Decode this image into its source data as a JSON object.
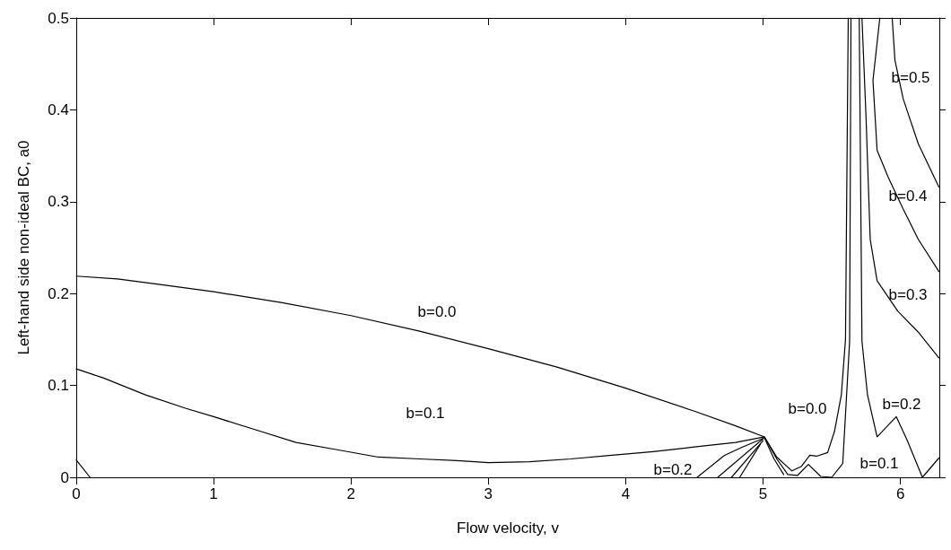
{
  "chart_data": {
    "type": "line",
    "xlabel": "Flow velocity, v",
    "ylabel": "Left-hand side non-ideal BC, a0",
    "xlim": [
      0,
      6.2832
    ],
    "xticks": [
      0,
      1,
      2,
      3,
      4,
      5,
      6
    ],
    "ylim": [
      0,
      0.5
    ],
    "yticks": [
      0,
      0.1,
      0.2,
      0.3,
      0.4,
      0.5
    ],
    "grid": false,
    "marker": "none",
    "line_style": "solid",
    "series": [
      {
        "color": "#000000",
        "x": [
          0,
          0.3,
          0.6,
          1,
          1.5,
          2,
          2.5,
          3,
          3.5,
          4,
          4.5,
          4.8,
          5.01,
          5.1,
          5.21,
          5.28,
          5.34,
          5.39,
          5.47,
          5.52,
          5.57,
          5.6,
          5.62
        ],
        "values": [
          0.219,
          0.216,
          0.21,
          0.202,
          0.19,
          0.176,
          0.159,
          0.14,
          0.12,
          0.097,
          0.072,
          0.056,
          0.044,
          0.022,
          0.007,
          0.012,
          0.024,
          0.023,
          0.027,
          0.05,
          0.09,
          0.15,
          0.5
        ]
      },
      {
        "color": "#000000",
        "x": [
          0,
          0.2,
          0.5,
          0.8,
          1,
          1.3,
          1.6,
          1.9,
          2.2,
          2.5,
          2.8,
          3,
          3.3,
          3.6,
          3.9,
          4.2,
          4.5,
          4.8,
          5.01,
          5.1,
          5.18,
          5.25,
          5.33,
          5.42,
          5.5,
          5.58,
          5.63,
          5.64
        ],
        "values": [
          0.118,
          0.108,
          0.09,
          0.075,
          0.066,
          0.052,
          0.038,
          0.03,
          0.022,
          0.02,
          0.018,
          0.016,
          0.017,
          0.02,
          0.024,
          0.028,
          0.033,
          0.038,
          0.044,
          0.02,
          0.003,
          0.002,
          0.014,
          0.001,
          0,
          0.015,
          0.148,
          0.5
        ]
      },
      {
        "color": "#000000",
        "x": [
          0,
          0.1,
          0.2,
          4.52,
          4.72,
          4.85,
          5.01,
          5.08,
          5.15,
          5.2,
          5.7,
          5.72,
          5.76,
          5.83,
          5.9,
          5.97,
          6.05,
          6.16,
          6.28
        ],
        "values": [
          0.019,
          0,
          null,
          0,
          0.024,
          0.033,
          0.043,
          0.02,
          0.003,
          null,
          0.5,
          0.148,
          0.09,
          0.044,
          0.055,
          0.066,
          0.04,
          0,
          0.021
        ]
      },
      {
        "color": "#000000",
        "x": [
          4.67,
          5.0,
          5.2,
          5.72,
          5.75,
          5.78,
          5.83,
          5.98,
          6.13,
          6.28
        ],
        "values": [
          0,
          0.042,
          null,
          0.5,
          0.39,
          0.259,
          0.214,
          0.181,
          0.158,
          0.13
        ]
      },
      {
        "color": "#000000",
        "x": [
          4.77,
          5.0,
          5.2,
          5.85,
          5.8,
          5.83,
          5.91,
          6.02,
          6.13,
          6.28
        ],
        "values": [
          0,
          0.04,
          null,
          0.5,
          0.432,
          0.356,
          0.327,
          0.292,
          0.259,
          0.224
        ]
      },
      {
        "color": "#000000",
        "x": [
          4.83,
          4.98,
          5.2,
          5.94,
          5.96,
          6.02,
          6.13,
          6.28
        ],
        "values": [
          0,
          0.036,
          null,
          0.5,
          0.454,
          0.412,
          0.363,
          0.316
        ]
      }
    ],
    "annotations": [
      "b=0.0",
      "b=0.1",
      "b=0.2",
      "b=0.0",
      "b=0.1",
      "b=0.2",
      "b=0.3",
      "b=0.4",
      "b=0.5"
    ]
  }
}
